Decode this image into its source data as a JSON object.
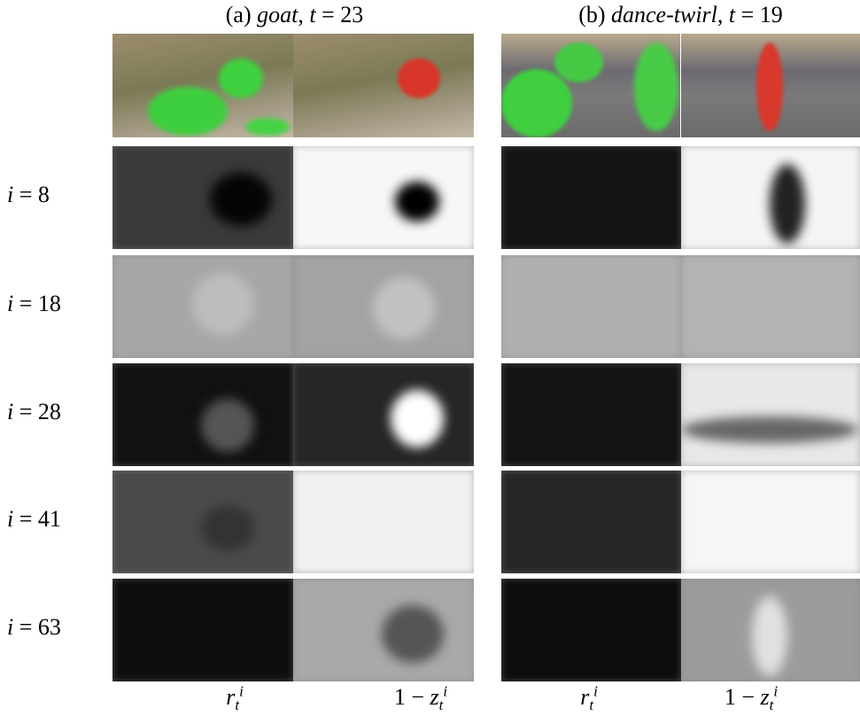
{
  "columns": [
    {
      "label": "(a)",
      "name": "goat",
      "sep": ",",
      "var": "t",
      "eq": "= 23"
    },
    {
      "label": "(b)",
      "name": "dance-twirl",
      "sep": ",",
      "var": "t",
      "eq": "= 19"
    }
  ],
  "rows": [
    {
      "var": "i",
      "eq": "= 8"
    },
    {
      "var": "i",
      "eq": "= 18"
    },
    {
      "var": "i",
      "eq": "= 28"
    },
    {
      "var": "i",
      "eq": "= 41"
    },
    {
      "var": "i",
      "eq": "= 63"
    }
  ],
  "panel_labels": [
    {
      "base": "r",
      "sub": "t",
      "sup": "i"
    },
    {
      "prefix": "1 −",
      "base": "z",
      "sub": "t",
      "sup": "i"
    }
  ]
}
